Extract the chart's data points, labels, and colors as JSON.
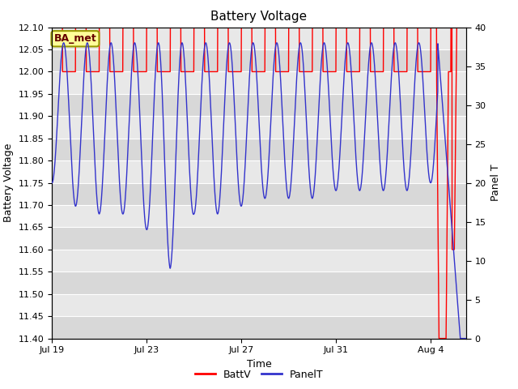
{
  "title": "Battery Voltage",
  "xlabel": "Time",
  "ylabel_left": "Battery Voltage",
  "ylabel_right": "Panel T",
  "ylim_left": [
    11.4,
    12.1
  ],
  "ylim_right": [
    0,
    40
  ],
  "yticks_left": [
    11.4,
    11.45,
    11.5,
    11.55,
    11.6,
    11.65,
    11.7,
    11.75,
    11.8,
    11.85,
    11.9,
    11.95,
    12.0,
    12.05,
    12.1
  ],
  "yticks_right": [
    0,
    5,
    10,
    15,
    20,
    25,
    30,
    35,
    40
  ],
  "xtick_positions": [
    0,
    4,
    8,
    12,
    16
  ],
  "xtick_labels": [
    "Jul 19",
    "Jul 23",
    "Jul 27",
    "Jul 31",
    "Aug 4"
  ],
  "xlim": [
    0,
    17.5
  ],
  "batt_color": "#FF0000",
  "panel_color": "#3333CC",
  "annotation_text": "BA_met",
  "annotation_facecolor": "#FFFF99",
  "annotation_edgecolor": "#999900",
  "annotation_textcolor": "#660000",
  "legend_batt_label": "BattV",
  "legend_panel_label": "PanelT",
  "fig_facecolor": "#FFFFFF",
  "plot_facecolor": "#E8E8E8",
  "stripe_colors": [
    "#D8D8D8",
    "#E8E8E8"
  ],
  "grid_color": "#FFFFFF",
  "title_fontsize": 11,
  "axis_fontsize": 9,
  "tick_fontsize": 8,
  "legend_fontsize": 9
}
